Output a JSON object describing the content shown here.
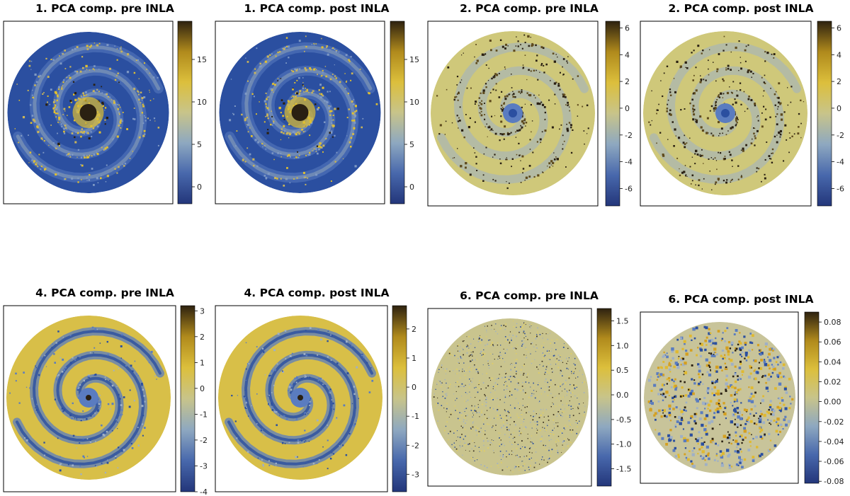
{
  "figure": {
    "colormap": {
      "name": "cividis-like",
      "stops": [
        "#23367a",
        "#4868ac",
        "#8ea8c0",
        "#c8c48a",
        "#dcbf3c",
        "#b08a1c",
        "#2e2210"
      ]
    },
    "image_colors": {
      "low": "#2b4fa0",
      "mid_blue": "#5a7cc0",
      "neutral": "#cfc87a",
      "gold": "#e0bf30",
      "dark": "#2a2012"
    }
  },
  "chart_data": [
    {
      "type": "heatmap",
      "title": "1. PCA comp. pre INLA",
      "component": 1,
      "stage": "pre INLA",
      "colorbar": {
        "range": [
          -2.0,
          19.5
        ],
        "ticks": [
          0,
          5,
          10,
          15
        ],
        "tick_labels": [
          "0",
          "5",
          "10",
          "15"
        ]
      },
      "pattern": "comp1"
    },
    {
      "type": "heatmap",
      "title": "1. PCA comp. post INLA",
      "component": 1,
      "stage": "post INLA",
      "colorbar": {
        "range": [
          -2.0,
          19.5
        ],
        "ticks": [
          0,
          5,
          10,
          15
        ],
        "tick_labels": [
          "0",
          "5",
          "10",
          "15"
        ]
      },
      "pattern": "comp1"
    },
    {
      "type": "heatmap",
      "title": "2. PCA comp. pre INLA",
      "component": 2,
      "stage": "pre INLA",
      "colorbar": {
        "range": [
          -7.3,
          6.5
        ],
        "ticks": [
          -6,
          -4,
          -2,
          0,
          2,
          4,
          6
        ],
        "tick_labels": [
          "-6",
          "-4",
          "-2",
          "0",
          "2",
          "4",
          "6"
        ]
      },
      "pattern": "comp2"
    },
    {
      "type": "heatmap",
      "title": "2. PCA comp. post INLA",
      "component": 2,
      "stage": "post INLA",
      "colorbar": {
        "range": [
          -7.3,
          6.5
        ],
        "ticks": [
          -6,
          -4,
          -2,
          0,
          2,
          4,
          6
        ],
        "tick_labels": [
          "-6",
          "-4",
          "-2",
          "0",
          "2",
          "4",
          "6"
        ]
      },
      "pattern": "comp2"
    },
    {
      "type": "heatmap",
      "title": "4. PCA comp. pre INLA",
      "component": 4,
      "stage": "pre INLA",
      "colorbar": {
        "range": [
          -4.0,
          3.2
        ],
        "ticks": [
          -4,
          -3,
          -2,
          -1,
          0,
          1,
          2,
          3
        ],
        "tick_labels": [
          "-4",
          "-3",
          "-2",
          "-1",
          "0",
          "1",
          "2",
          "3"
        ]
      },
      "pattern": "comp4"
    },
    {
      "type": "heatmap",
      "title": "4. PCA comp. post INLA",
      "component": 4,
      "stage": "post INLA",
      "colorbar": {
        "range": [
          -3.6,
          2.8
        ],
        "ticks": [
          -3,
          -2,
          -1,
          0,
          1,
          2
        ],
        "tick_labels": [
          "-3",
          "-2",
          "-1",
          "0",
          "1",
          "2"
        ]
      },
      "pattern": "comp4"
    },
    {
      "type": "heatmap",
      "title": "6. PCA comp. pre INLA",
      "component": 6,
      "stage": "pre INLA",
      "colorbar": {
        "range": [
          -1.85,
          1.75
        ],
        "ticks": [
          -1.5,
          -1.0,
          -0.5,
          0.0,
          0.5,
          1.0,
          1.5
        ],
        "tick_labels": [
          "-1.5",
          "-1.0",
          "-0.5",
          "0.0",
          "0.5",
          "1.0",
          "1.5"
        ]
      },
      "pattern": "comp6pre"
    },
    {
      "type": "heatmap",
      "title": "6. PCA comp. post INLA",
      "component": 6,
      "stage": "post INLA",
      "colorbar": {
        "range": [
          -0.082,
          0.09
        ],
        "ticks": [
          -0.08,
          -0.06,
          -0.04,
          -0.02,
          0.0,
          0.02,
          0.04,
          0.06,
          0.08
        ],
        "tick_labels": [
          "-0.08",
          "-0.06",
          "-0.04",
          "-0.02",
          "0.00",
          "0.02",
          "0.04",
          "0.06",
          "0.08"
        ]
      },
      "pattern": "comp6post"
    }
  ]
}
